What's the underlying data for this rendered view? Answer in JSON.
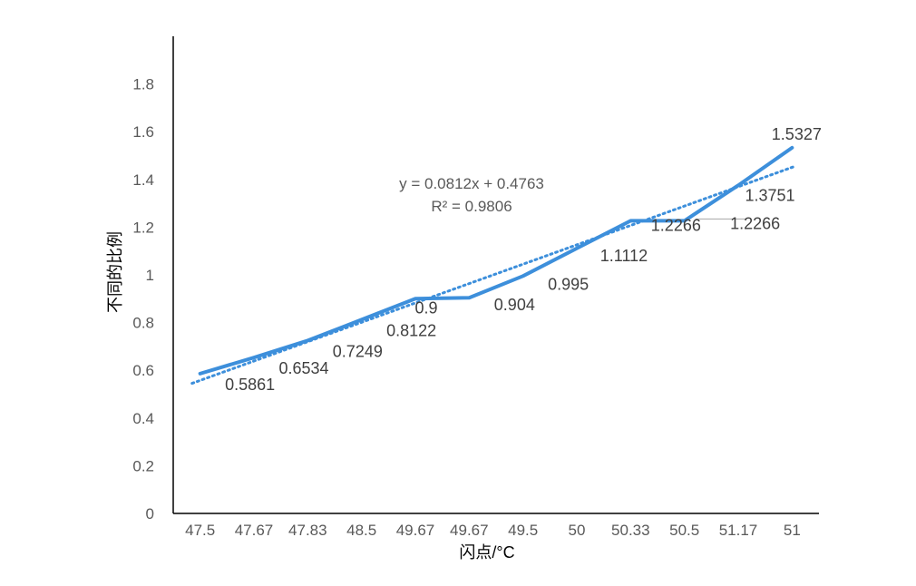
{
  "chart_data": {
    "type": "line",
    "title": "",
    "xlabel": "闪点/°C",
    "ylabel": "不同的比例",
    "categories": [
      "47.5",
      "47.67",
      "47.83",
      "48.5",
      "49.67",
      "49.67",
      "49.5",
      "50",
      "50.33",
      "50.5",
      "51.17",
      "51"
    ],
    "series": [
      {
        "values": [
          0.5861,
          0.6534,
          0.7249,
          0.8122,
          0.9,
          0.904,
          0.995,
          1.1112,
          1.2266,
          1.2266,
          1.3751,
          1.5327
        ],
        "labels": [
          "0.5861",
          "0.6534",
          "0.7249",
          "0.8122",
          "0.9",
          "0.904",
          "0.995",
          "1.1112",
          "1.2266",
          "1.2266",
          "1.3751",
          "1.5327"
        ],
        "color": "#3d8fdb"
      }
    ],
    "trendline": {
      "type": "linear",
      "slope": 0.0812,
      "intercept": 0.4763,
      "equation": "y = 0.0812x + 0.4763",
      "r_squared": "R² = 0.9806",
      "color": "#3d8fdb",
      "style": "dotted"
    },
    "ylim": [
      0,
      2
    ],
    "yticks": [
      "0",
      "0.2",
      "0.4",
      "0.6",
      "0.8",
      "1",
      "1.2",
      "1.4",
      "1.6",
      "1.8"
    ],
    "grid": false,
    "legend": "none"
  }
}
